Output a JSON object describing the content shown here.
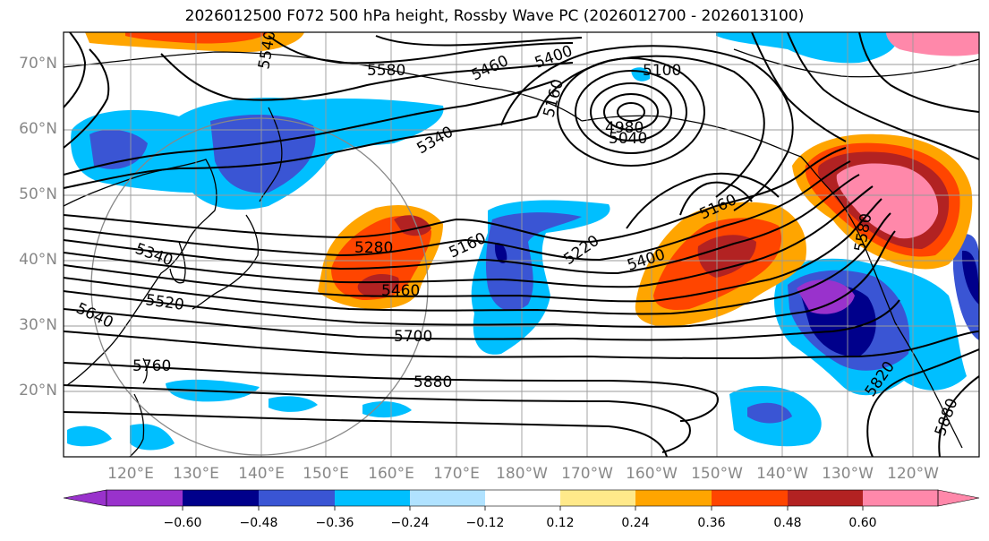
{
  "title": "2026012500 F072 500 hPa height, Rossby Wave PC (2026012700 - 2026013100)",
  "lat_labels": [
    "70°N",
    "60°N",
    "50°N",
    "40°N",
    "30°N",
    "20°N"
  ],
  "lon_labels": [
    "120°E",
    "130°E",
    "140°E",
    "150°E",
    "160°E",
    "170°E",
    "180°W",
    "170°W",
    "160°W",
    "150°W",
    "140°W",
    "130°W",
    "120°W"
  ],
  "contour_labels": [
    "5580",
    "5460",
    "5400",
    "5100",
    "5160",
    "4980",
    "5040",
    "5340",
    "5540",
    "5340",
    "5520",
    "5640",
    "5760",
    "5280",
    "5460",
    "5160",
    "5220",
    "5400",
    "5160",
    "5700",
    "5880",
    "5580",
    "5820",
    "5880"
  ],
  "colorbar": {
    "ticks": [
      "−0.60",
      "−0.48",
      "−0.36",
      "−0.24",
      "−0.12",
      "0.12",
      "0.24",
      "0.36",
      "0.48",
      "0.60"
    ],
    "colors": [
      "#9932cc",
      "#00008b",
      "#3a55d4",
      "#00bfff",
      "#b0e2ff",
      "#ffffff",
      "#ffe98a",
      "#ffa500",
      "#ff4500",
      "#b22222",
      "#ff88aa"
    ]
  },
  "colors": {
    "neg_strong": "#00008b",
    "neg_mid": "#3a55d4",
    "neg_light": "#00bfff",
    "neg_faint": "#b0e2ff",
    "pos_faint": "#ffe98a",
    "pos_light": "#ffa500",
    "pos_mid": "#ff4500",
    "pos_strong": "#b22222",
    "pos_max": "#ff88aa",
    "violet": "#9932cc"
  }
}
